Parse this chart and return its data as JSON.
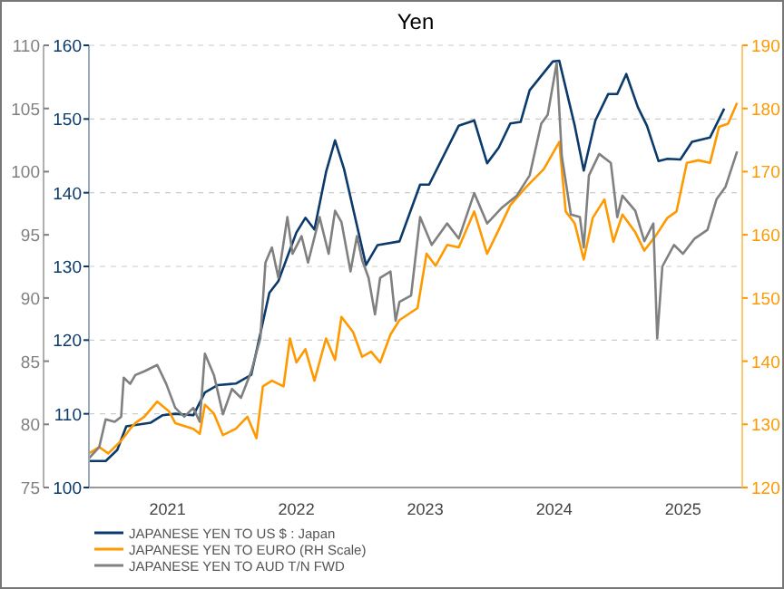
{
  "chart_data": {
    "type": "line",
    "title": "Yen",
    "xlim": [
      2020.89,
      2025.96
    ],
    "xticks": [
      {
        "value": 2021.5,
        "label": "2021"
      },
      {
        "value": 2022.5,
        "label": "2022"
      },
      {
        "value": 2023.5,
        "label": "2023"
      },
      {
        "value": 2024.5,
        "label": "2024"
      },
      {
        "value": 2025.5,
        "label": "2025"
      }
    ],
    "ylim": [
      100,
      160
    ],
    "yticks": [
      100,
      110,
      120,
      130,
      140,
      150,
      160
    ],
    "y2lim": [
      120,
      190
    ],
    "y2ticks": [
      120,
      130,
      140,
      150,
      160,
      170,
      180,
      190
    ],
    "y3lim": [
      75,
      110
    ],
    "y3ticks": [
      75,
      80,
      85,
      90,
      95,
      100,
      105,
      110
    ],
    "grid": "y",
    "legend": "bottom",
    "line_style": "solid",
    "marker": "none",
    "series": [
      {
        "name": "JAPANESE YEN TO US $ : Japan",
        "color": "#0b3a6b",
        "x": [
          2020.89,
          2021.02,
          2021.11,
          2021.18,
          2021.37,
          2021.46,
          2021.56,
          2021.7,
          2021.79,
          2021.89,
          2022.03,
          2022.15,
          2022.29,
          2022.36,
          2022.5,
          2022.57,
          2022.64,
          2022.73,
          2022.8,
          2022.87,
          2023.04,
          2023.13,
          2023.3,
          2023.46,
          2023.53,
          2023.76,
          2023.88,
          2023.98,
          2024.07,
          2024.16,
          2024.24,
          2024.31,
          2024.49,
          2024.54,
          2024.66,
          2024.73,
          2024.82,
          2024.92,
          2024.99,
          2025.06,
          2025.15,
          2025.22,
          2025.31,
          2025.38,
          2025.48,
          2025.57,
          2025.71,
          2025.82
        ],
        "values": [
          103.6,
          103.6,
          105.1,
          108.3,
          108.8,
          109.8,
          110.0,
          109.8,
          112.9,
          113.9,
          114.1,
          115.3,
          126.4,
          128.0,
          134.6,
          136.6,
          135.0,
          142.8,
          147.1,
          143.2,
          130.2,
          132.9,
          133.4,
          141.1,
          141.1,
          149.1,
          149.8,
          144.0,
          146.1,
          149.4,
          149.6,
          153.9,
          157.8,
          157.9,
          149.1,
          143.0,
          149.8,
          153.4,
          153.4,
          156.1,
          151.6,
          149.1,
          144.3,
          144.6,
          144.5,
          146.9,
          147.5,
          151.4
        ]
      },
      {
        "name": "JAPANESE YEN TO EURO (RH Scale)",
        "color": "#ff9900",
        "axis": "y2",
        "x": [
          2020.89,
          2020.97,
          2021.04,
          2021.14,
          2021.21,
          2021.25,
          2021.32,
          2021.42,
          2021.51,
          2021.56,
          2021.7,
          2021.75,
          2021.79,
          2021.86,
          2021.93,
          2022.03,
          2022.12,
          2022.19,
          2022.24,
          2022.31,
          2022.4,
          2022.45,
          2022.5,
          2022.57,
          2022.64,
          2022.73,
          2022.8,
          2022.85,
          2022.94,
          2023.01,
          2023.08,
          2023.15,
          2023.23,
          2023.3,
          2023.44,
          2023.51,
          2023.58,
          2023.67,
          2023.76,
          2023.88,
          2023.98,
          2024.07,
          2024.16,
          2024.28,
          2024.42,
          2024.54,
          2024.59,
          2024.66,
          2024.73,
          2024.8,
          2024.89,
          2024.96,
          2025.03,
          2025.13,
          2025.2,
          2025.29,
          2025.38,
          2025.45,
          2025.53,
          2025.62,
          2025.71,
          2025.78,
          2025.85,
          2025.92
        ],
        "values": [
          125.4,
          126.4,
          125.4,
          127.4,
          129.3,
          130.2,
          131.2,
          133.6,
          132.1,
          130.2,
          129.3,
          128.5,
          133.1,
          131.7,
          128.3,
          129.3,
          131.2,
          127.8,
          136.0,
          136.9,
          136.0,
          143.6,
          139.8,
          141.9,
          136.9,
          143.6,
          140.2,
          147.0,
          144.6,
          140.7,
          141.5,
          139.8,
          144.2,
          146.5,
          148.4,
          157.0,
          155.1,
          158.4,
          158.0,
          163.7,
          157.0,
          160.8,
          164.7,
          167.5,
          170.4,
          174.7,
          163.7,
          161.8,
          156.1,
          162.7,
          165.6,
          158.9,
          163.2,
          160.4,
          157.5,
          159.9,
          162.7,
          163.7,
          171.4,
          171.8,
          171.4,
          177.1,
          177.6,
          180.9
        ]
      },
      {
        "name": "JAPANESE YEN TO AUD T/N FWD",
        "color": "#808080",
        "axis": "y3",
        "x": [
          2020.89,
          2020.97,
          2021.02,
          2021.09,
          2021.14,
          2021.16,
          2021.21,
          2021.25,
          2021.32,
          2021.42,
          2021.49,
          2021.56,
          2021.63,
          2021.7,
          2021.75,
          2021.79,
          2021.86,
          2021.93,
          2022.0,
          2022.07,
          2022.15,
          2022.22,
          2022.26,
          2022.31,
          2022.36,
          2022.43,
          2022.47,
          2022.54,
          2022.59,
          2022.68,
          2022.75,
          2022.8,
          2022.85,
          2022.92,
          2022.97,
          2023.01,
          2023.06,
          2023.11,
          2023.15,
          2023.23,
          2023.27,
          2023.3,
          2023.39,
          2023.46,
          2023.55,
          2023.67,
          2023.76,
          2023.88,
          2023.98,
          2024.09,
          2024.21,
          2024.31,
          2024.4,
          2024.45,
          2024.52,
          2024.56,
          2024.63,
          2024.7,
          2024.73,
          2024.77,
          2024.85,
          2024.94,
          2024.99,
          2025.03,
          2025.13,
          2025.2,
          2025.27,
          2025.3,
          2025.34,
          2025.43,
          2025.5,
          2025.59,
          2025.69,
          2025.76,
          2025.83,
          2025.92
        ],
        "values": [
          77.3,
          78.2,
          80.4,
          80.2,
          80.6,
          83.7,
          83.2,
          83.9,
          84.2,
          84.7,
          83.2,
          81.3,
          80.6,
          81.3,
          80.2,
          85.6,
          83.9,
          80.8,
          82.8,
          82.1,
          84.2,
          86.8,
          92.8,
          94.0,
          91.6,
          96.4,
          93.5,
          94.9,
          92.8,
          96.4,
          93.5,
          96.9,
          96.0,
          92.1,
          94.9,
          93.0,
          91.6,
          88.7,
          91.6,
          92.1,
          88.2,
          89.7,
          90.2,
          96.4,
          94.2,
          95.9,
          94.7,
          98.3,
          95.9,
          97.1,
          98.1,
          99.7,
          103.8,
          104.5,
          108.6,
          101.2,
          96.6,
          96.4,
          94.0,
          99.7,
          101.4,
          100.7,
          96.4,
          98.1,
          96.9,
          94.5,
          95.9,
          86.8,
          92.5,
          94.2,
          93.5,
          94.7,
          95.4,
          97.8,
          98.8,
          101.6
        ]
      }
    ]
  }
}
